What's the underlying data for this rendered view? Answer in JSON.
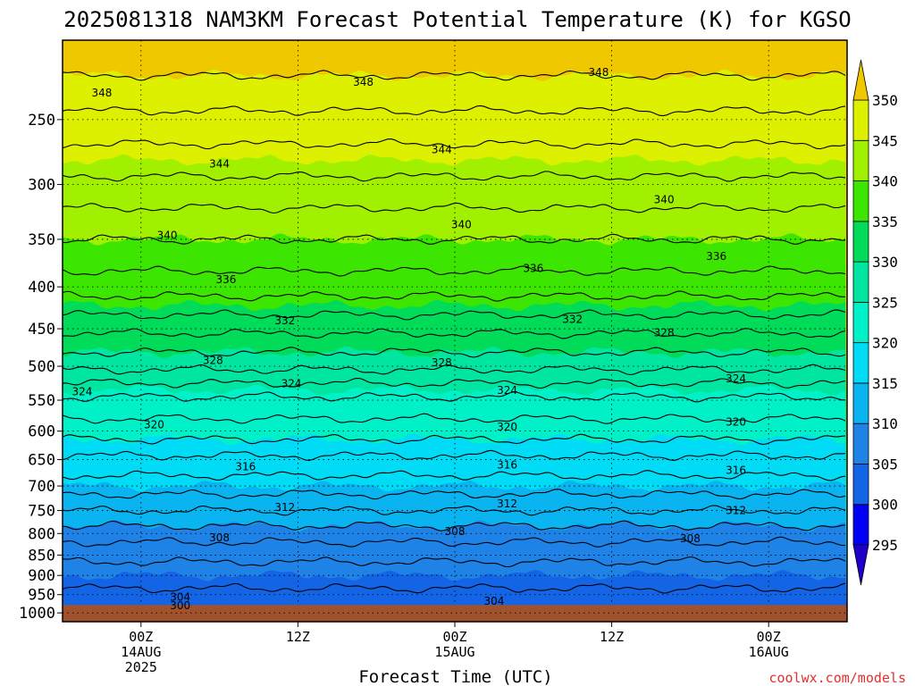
{
  "chart_data": {
    "type": "heatmap",
    "title": "2025081318 NAM3KM Forecast Potential Temperature (K) for KGSO",
    "xlabel": "Forecast Time (UTC)",
    "ylabel": "",
    "credit": "coolwx.com/models",
    "y_axis_pressure_ticks": [
      250,
      300,
      350,
      400,
      450,
      500,
      550,
      600,
      650,
      700,
      750,
      800,
      850,
      900,
      950,
      1000
    ],
    "y_axis_log_scale": true,
    "ylim": [
      200,
      1025
    ],
    "x_axis_forecast_hours": [
      0,
      60
    ],
    "x_ticks": [
      {
        "hour": 6,
        "lines": [
          "00Z",
          "14AUG",
          "2025"
        ]
      },
      {
        "hour": 18,
        "lines": [
          "12Z"
        ]
      },
      {
        "hour": 30,
        "lines": [
          "00Z",
          "15AUG"
        ]
      },
      {
        "hour": 42,
        "lines": [
          "12Z"
        ]
      },
      {
        "hour": 54,
        "lines": [
          "00Z",
          "16AUG"
        ]
      }
    ],
    "grid": "dotted",
    "colorbar": {
      "levels": [
        295,
        300,
        305,
        310,
        315,
        320,
        325,
        330,
        335,
        340,
        345,
        350
      ],
      "colors": [
        "#1e00c8",
        "#0000f5",
        "#1464e6",
        "#1e82e6",
        "#0ab4f0",
        "#00dcf5",
        "#00f0c8",
        "#00e6a0",
        "#00dc5a",
        "#3ce600",
        "#a0f000",
        "#dcf000",
        "#fff800",
        "#f0c800"
      ],
      "extend": "both",
      "labels": [
        "295",
        "300",
        "305",
        "310",
        "315",
        "320",
        "325",
        "330",
        "335",
        "340",
        "345",
        "350"
      ]
    },
    "theta_profile_pressure_hpa": [
      200,
      250,
      300,
      350,
      400,
      450,
      500,
      550,
      600,
      650,
      700,
      750,
      800,
      850,
      900,
      950,
      980
    ],
    "theta_profile_kelvin": [
      352,
      347.5,
      343.5,
      340,
      337,
      332.5,
      328.5,
      323.5,
      321,
      317.5,
      315,
      312,
      309,
      306.5,
      305,
      303.5,
      302
    ],
    "contour_interval_k": 2,
    "contour_labels": [
      {
        "value": "348",
        "hour": 3,
        "p": 232
      },
      {
        "value": "348",
        "hour": 23,
        "p": 225
      },
      {
        "value": "348",
        "hour": 41,
        "p": 219
      },
      {
        "value": "344",
        "hour": 12,
        "p": 283
      },
      {
        "value": "344",
        "hour": 29,
        "p": 272
      },
      {
        "value": "340",
        "hour": 8,
        "p": 346
      },
      {
        "value": "340",
        "hour": 30.5,
        "p": 336
      },
      {
        "value": "340",
        "hour": 46,
        "p": 313
      },
      {
        "value": "336",
        "hour": 12.5,
        "p": 392
      },
      {
        "value": "336",
        "hour": 36,
        "p": 380
      },
      {
        "value": "336",
        "hour": 50,
        "p": 367
      },
      {
        "value": "332",
        "hour": 17,
        "p": 440
      },
      {
        "value": "332",
        "hour": 39,
        "p": 438
      },
      {
        "value": "328",
        "hour": 11.5,
        "p": 492
      },
      {
        "value": "328",
        "hour": 29,
        "p": 495
      },
      {
        "value": "328",
        "hour": 46,
        "p": 455
      },
      {
        "value": "324",
        "hour": 1.5,
        "p": 537
      },
      {
        "value": "324",
        "hour": 17.5,
        "p": 525
      },
      {
        "value": "324",
        "hour": 34,
        "p": 535
      },
      {
        "value": "324",
        "hour": 51.5,
        "p": 518
      },
      {
        "value": "320",
        "hour": 7,
        "p": 589
      },
      {
        "value": "320",
        "hour": 34,
        "p": 593
      },
      {
        "value": "320",
        "hour": 51.5,
        "p": 585
      },
      {
        "value": "316",
        "hour": 14,
        "p": 663
      },
      {
        "value": "316",
        "hour": 34,
        "p": 660
      },
      {
        "value": "316",
        "hour": 51.5,
        "p": 670
      },
      {
        "value": "312",
        "hour": 17,
        "p": 743
      },
      {
        "value": "312",
        "hour": 34,
        "p": 736
      },
      {
        "value": "312",
        "hour": 51.5,
        "p": 750
      },
      {
        "value": "308",
        "hour": 12,
        "p": 810
      },
      {
        "value": "308",
        "hour": 30,
        "p": 795
      },
      {
        "value": "308",
        "hour": 48,
        "p": 812
      },
      {
        "value": "304",
        "hour": 9,
        "p": 957
      },
      {
        "value": "304",
        "hour": 33,
        "p": 968
      },
      {
        "value": "300",
        "hour": 9,
        "p": 980
      }
    ],
    "ground_color": "#a0522d"
  }
}
